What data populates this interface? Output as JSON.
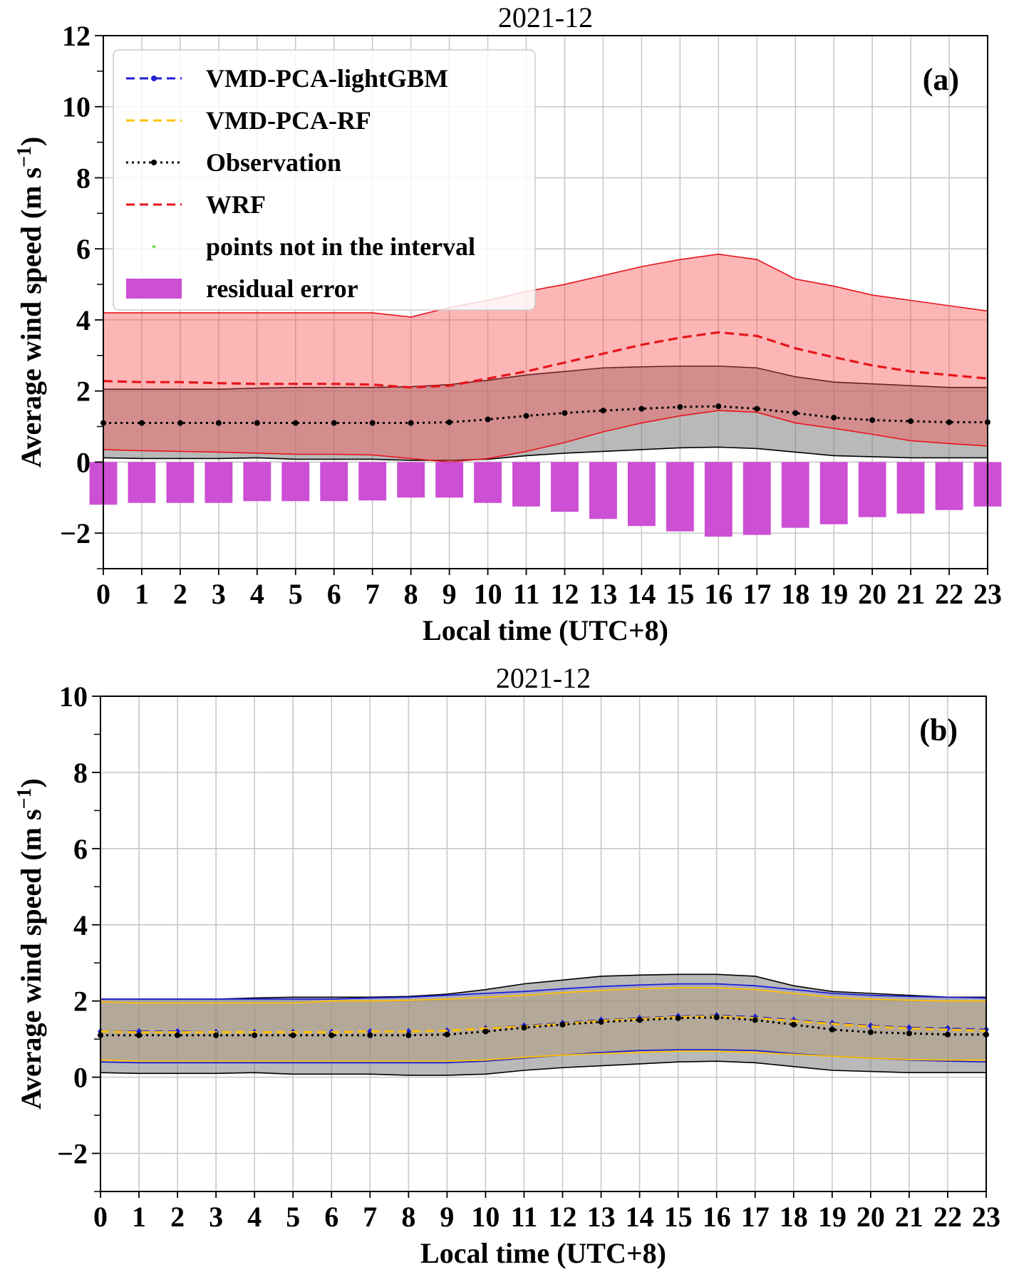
{
  "chart_data": [
    {
      "type": "line",
      "title": "2021-12",
      "panel_label": "(a)",
      "xlabel": "Local time (UTC+8)",
      "ylabel": "Average wind speed (m s",
      "ylabel_sup": "−1",
      "ylabel_close": ")",
      "x": [
        0,
        1,
        2,
        3,
        4,
        5,
        6,
        7,
        8,
        9,
        10,
        11,
        12,
        13,
        14,
        15,
        16,
        17,
        18,
        19,
        20,
        21,
        22,
        23
      ],
      "xlim": [
        0,
        23
      ],
      "ylim": [
        -3,
        12
      ],
      "yticks": [
        -2,
        0,
        2,
        4,
        6,
        8,
        10,
        12
      ],
      "ytick_labels": [
        "−2",
        "0",
        "2",
        "4",
        "6",
        "8",
        "10",
        "12"
      ],
      "grid": true,
      "legend_position": "top-left",
      "legend": [
        {
          "label": "VMD-PCA-lightGBM",
          "style": "dashed-marker",
          "color": "#1f1fd6"
        },
        {
          "label": "VMD-PCA-RF",
          "style": "dashed",
          "color": "#ffc000"
        },
        {
          "label": "Observation",
          "style": "dotted-marker",
          "color": "#000000"
        },
        {
          "label": "WRF",
          "style": "dashed",
          "color": "#e8141c"
        },
        {
          "label": "points not in the interval",
          "style": "point",
          "color": "#55dd33"
        },
        {
          "label": "residual error",
          "style": "patch",
          "color": "#cc4fd4"
        }
      ],
      "observation": [
        1.1,
        1.1,
        1.1,
        1.1,
        1.1,
        1.1,
        1.1,
        1.1,
        1.1,
        1.12,
        1.2,
        1.3,
        1.38,
        1.45,
        1.5,
        1.55,
        1.57,
        1.5,
        1.38,
        1.25,
        1.18,
        1.15,
        1.12,
        1.12
      ],
      "observation_band": {
        "upper": [
          2.05,
          2.05,
          2.05,
          2.05,
          2.08,
          2.1,
          2.1,
          2.1,
          2.12,
          2.18,
          2.3,
          2.45,
          2.55,
          2.65,
          2.68,
          2.7,
          2.7,
          2.65,
          2.4,
          2.25,
          2.2,
          2.15,
          2.1,
          2.1
        ],
        "lower": [
          0.12,
          0.1,
          0.1,
          0.1,
          0.12,
          0.08,
          0.08,
          0.08,
          0.05,
          0.05,
          0.08,
          0.18,
          0.25,
          0.3,
          0.35,
          0.4,
          0.42,
          0.38,
          0.28,
          0.18,
          0.15,
          0.12,
          0.12,
          0.12
        ]
      },
      "wrf": [
        2.28,
        2.25,
        2.25,
        2.22,
        2.2,
        2.2,
        2.2,
        2.18,
        2.1,
        2.15,
        2.35,
        2.55,
        2.8,
        3.05,
        3.3,
        3.5,
        3.65,
        3.55,
        3.2,
        2.95,
        2.72,
        2.55,
        2.45,
        2.35
      ],
      "wrf_band": {
        "upper": [
          4.2,
          4.2,
          4.2,
          4.2,
          4.2,
          4.2,
          4.2,
          4.2,
          4.08,
          4.35,
          4.55,
          4.8,
          5.0,
          5.25,
          5.5,
          5.7,
          5.85,
          5.7,
          5.15,
          4.95,
          4.7,
          4.55,
          4.4,
          4.25
        ],
        "lower": [
          0.35,
          0.32,
          0.3,
          0.28,
          0.25,
          0.22,
          0.22,
          0.2,
          0.1,
          0.0,
          0.1,
          0.3,
          0.55,
          0.85,
          1.1,
          1.3,
          1.45,
          1.4,
          1.1,
          0.95,
          0.78,
          0.6,
          0.52,
          0.45
        ]
      },
      "residual_error": [
        -1.2,
        -1.15,
        -1.15,
        -1.15,
        -1.1,
        -1.1,
        -1.1,
        -1.08,
        -1.0,
        -1.0,
        -1.15,
        -1.25,
        -1.4,
        -1.6,
        -1.8,
        -1.95,
        -2.1,
        -2.05,
        -1.85,
        -1.75,
        -1.55,
        -1.45,
        -1.35,
        -1.25
      ]
    },
    {
      "type": "line",
      "title": "2021-12",
      "panel_label": "(b)",
      "xlabel": "Local time (UTC+8)",
      "ylabel": "Average wind speed (m s",
      "ylabel_sup": "−1",
      "ylabel_close": ")",
      "x": [
        0,
        1,
        2,
        3,
        4,
        5,
        6,
        7,
        8,
        9,
        10,
        11,
        12,
        13,
        14,
        15,
        16,
        17,
        18,
        19,
        20,
        21,
        22,
        23
      ],
      "xlim": [
        0,
        23
      ],
      "ylim": [
        -3,
        10
      ],
      "yticks": [
        -2,
        0,
        2,
        4,
        6,
        8,
        10
      ],
      "ytick_labels": [
        "−2",
        "0",
        "2",
        "4",
        "6",
        "8",
        "10"
      ],
      "grid": true,
      "observation": [
        1.1,
        1.1,
        1.1,
        1.1,
        1.1,
        1.1,
        1.1,
        1.1,
        1.1,
        1.12,
        1.2,
        1.3,
        1.38,
        1.45,
        1.5,
        1.55,
        1.57,
        1.5,
        1.38,
        1.25,
        1.18,
        1.15,
        1.12,
        1.12
      ],
      "observation_band": {
        "upper": [
          2.05,
          2.05,
          2.05,
          2.05,
          2.08,
          2.1,
          2.1,
          2.1,
          2.12,
          2.18,
          2.3,
          2.45,
          2.55,
          2.65,
          2.68,
          2.7,
          2.7,
          2.65,
          2.4,
          2.25,
          2.2,
          2.15,
          2.1,
          2.1
        ],
        "lower": [
          0.12,
          0.1,
          0.1,
          0.1,
          0.12,
          0.08,
          0.08,
          0.08,
          0.05,
          0.05,
          0.08,
          0.18,
          0.25,
          0.3,
          0.35,
          0.4,
          0.42,
          0.38,
          0.28,
          0.18,
          0.15,
          0.12,
          0.12,
          0.12
        ]
      },
      "lightgbm": [
        1.2,
        1.2,
        1.2,
        1.18,
        1.18,
        1.18,
        1.18,
        1.2,
        1.2,
        1.22,
        1.28,
        1.35,
        1.42,
        1.5,
        1.55,
        1.6,
        1.62,
        1.58,
        1.5,
        1.42,
        1.35,
        1.3,
        1.28,
        1.25
      ],
      "lightgbm_band": {
        "upper": [
          2.05,
          2.05,
          2.05,
          2.05,
          2.05,
          2.05,
          2.05,
          2.08,
          2.1,
          2.15,
          2.2,
          2.25,
          2.32,
          2.38,
          2.42,
          2.45,
          2.45,
          2.4,
          2.3,
          2.2,
          2.15,
          2.12,
          2.1,
          2.08
        ],
        "lower": [
          0.4,
          0.38,
          0.38,
          0.38,
          0.38,
          0.38,
          0.38,
          0.38,
          0.38,
          0.38,
          0.42,
          0.5,
          0.58,
          0.65,
          0.7,
          0.72,
          0.72,
          0.7,
          0.62,
          0.55,
          0.5,
          0.45,
          0.42,
          0.4
        ]
      },
      "rf": [
        1.2,
        1.18,
        1.18,
        1.18,
        1.18,
        1.18,
        1.18,
        1.2,
        1.2,
        1.22,
        1.28,
        1.33,
        1.4,
        1.48,
        1.53,
        1.58,
        1.6,
        1.55,
        1.48,
        1.4,
        1.33,
        1.28,
        1.25,
        1.22
      ],
      "rf_band": {
        "upper": [
          1.98,
          1.95,
          1.95,
          1.95,
          1.95,
          1.95,
          2.0,
          2.0,
          2.02,
          2.05,
          2.1,
          2.15,
          2.22,
          2.28,
          2.32,
          2.35,
          2.35,
          2.3,
          2.2,
          2.1,
          2.05,
          2.02,
          2.0,
          2.0
        ],
        "lower": [
          0.45,
          0.42,
          0.42,
          0.42,
          0.42,
          0.42,
          0.42,
          0.42,
          0.42,
          0.42,
          0.45,
          0.52,
          0.58,
          0.62,
          0.65,
          0.68,
          0.68,
          0.65,
          0.6,
          0.55,
          0.5,
          0.46,
          0.45,
          0.45
        ]
      }
    }
  ]
}
